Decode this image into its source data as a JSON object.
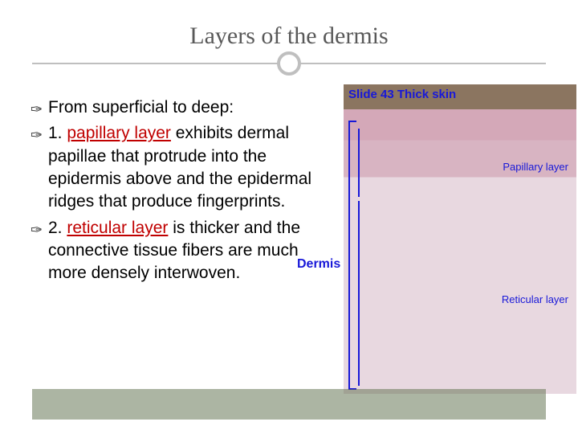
{
  "title": "Layers of the dermis",
  "bullets": [
    {
      "prefix": "",
      "highlight": "",
      "text": "From superficial to deep:"
    },
    {
      "prefix": "1. ",
      "highlight": "papillary layer",
      "text": " exhibits dermal papillae that protrude into the epidermis above and the epidermal ridges that produce fingerprints."
    },
    {
      "prefix": "2. ",
      "highlight": "reticular layer",
      "text": " is thicker and the connective tissue fibers are much more densely interwoven."
    }
  ],
  "image_labels": {
    "slide_header": "Slide 43 Thick skin",
    "papillary": "Papillary layer",
    "dermis": "Dermis",
    "reticular": "Reticular layer"
  },
  "colors": {
    "title_color": "#595959",
    "highlight_color": "#c00000",
    "label_color": "#1818d8",
    "bottom_bar": "#5a6b47"
  }
}
